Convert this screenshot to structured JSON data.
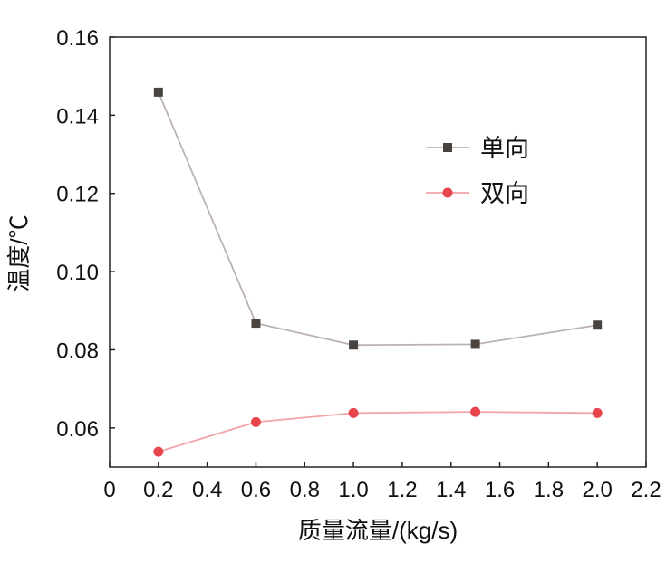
{
  "chart_data": {
    "type": "line",
    "title": "",
    "xlabel": "质量流量/(kg/s)",
    "ylabel": "温度/℃",
    "xlim": [
      0,
      2.2
    ],
    "ylim": [
      0.05,
      0.16
    ],
    "xticks": [
      "0",
      "0.2",
      "0.4",
      "0.6",
      "0.8",
      "1.0",
      "1.2",
      "1.4",
      "1.6",
      "1.8",
      "2.0",
      "2.2"
    ],
    "yticks": [
      "0.06",
      "0.08",
      "0.10",
      "0.12",
      "0.14",
      "0.16"
    ],
    "grid": false,
    "legend_position": "upper-right",
    "x": [
      0.2,
      0.6,
      1.0,
      1.5,
      2.0
    ],
    "series": [
      {
        "name": "单向",
        "values": [
          0.1459,
          0.0868,
          0.0812,
          0.0814,
          0.0863
        ],
        "marker": "square",
        "marker_color": "#4a4440",
        "line_color": "#bcb3ae"
      },
      {
        "name": "双向",
        "values": [
          0.0539,
          0.0615,
          0.0638,
          0.0641,
          0.0638
        ],
        "marker": "circle",
        "marker_color": "#e8444c",
        "line_color": "#f2a3a8"
      }
    ]
  }
}
